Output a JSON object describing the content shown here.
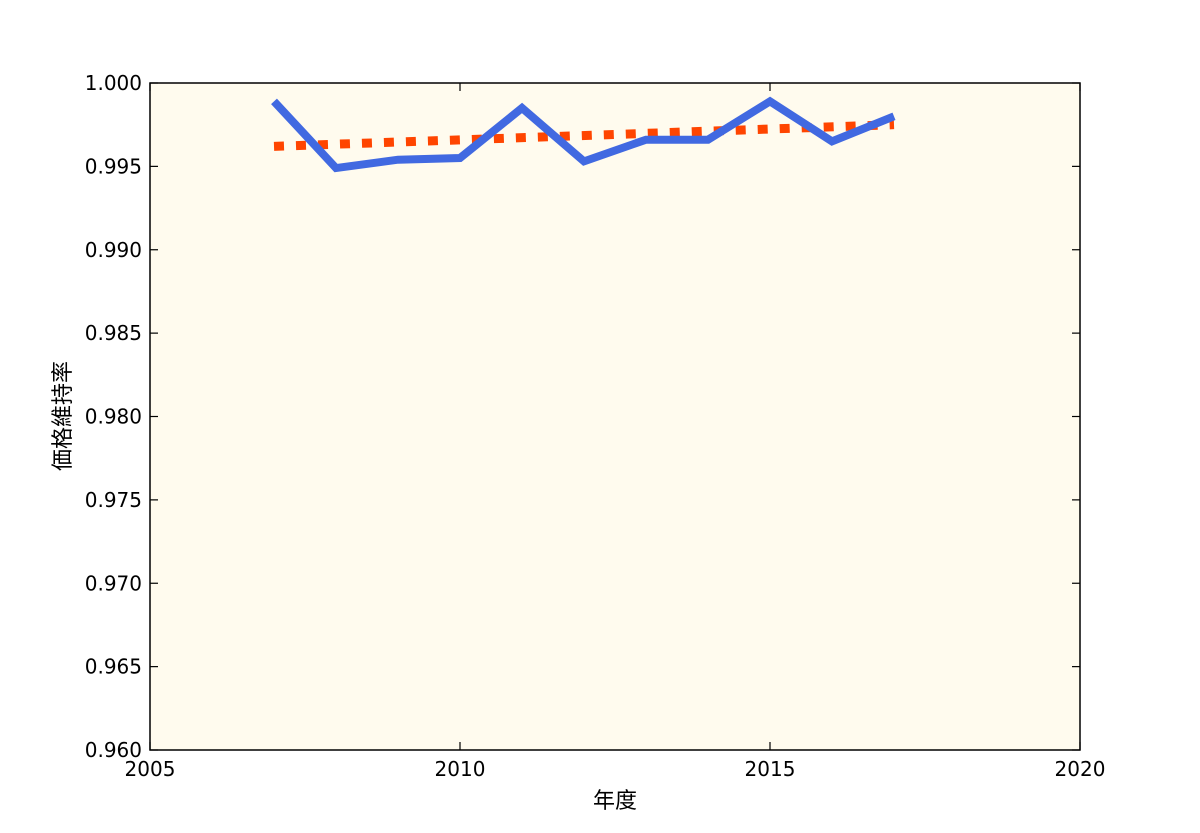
{
  "chart_data": {
    "type": "line",
    "title": "",
    "xlabel": "年度",
    "ylabel": "価格維持率",
    "xlim": [
      2005,
      2020
    ],
    "ylim": [
      0.96,
      1.0
    ],
    "grid": false,
    "x_ticks": [
      2005,
      2010,
      2015,
      2020
    ],
    "y_ticks": [
      0.96,
      0.965,
      0.97,
      0.975,
      0.98,
      0.985,
      0.99,
      0.995,
      1.0
    ],
    "x_tick_labels": [
      "2005",
      "2010",
      "2015",
      "2020"
    ],
    "y_tick_labels": [
      "0.960",
      "0.965",
      "0.970",
      "0.975",
      "0.980",
      "0.985",
      "0.990",
      "0.995",
      "1.000"
    ],
    "colors": {
      "plot_background": "#fffbee",
      "actual_line": "#4169e1",
      "trend_line": "#ff4500"
    },
    "series": [
      {
        "style": "solid",
        "x": [
          2007,
          2008,
          2009,
          2010,
          2011,
          2012,
          2013,
          2014,
          2015,
          2016,
          2017
        ],
        "y": [
          0.9989,
          0.9949,
          0.9954,
          0.9955,
          0.9985,
          0.9953,
          0.9966,
          0.9966,
          0.9989,
          0.9965,
          0.998
        ]
      },
      {
        "style": "dotted",
        "x": [
          2007,
          2017
        ],
        "y": [
          0.9962,
          0.9975
        ]
      }
    ]
  }
}
